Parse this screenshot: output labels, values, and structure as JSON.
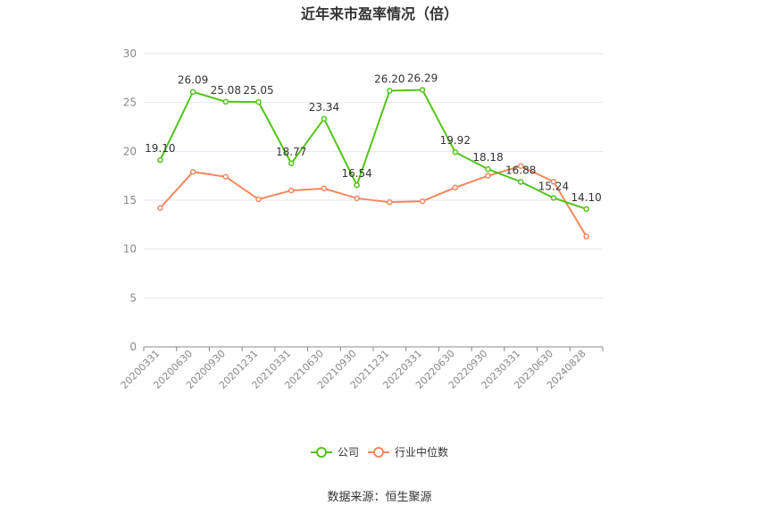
{
  "chart_data": {
    "type": "line",
    "title": "近年来市盈率情况（倍）",
    "categories": [
      "20200331",
      "20200630",
      "20200930",
      "20201231",
      "20210331",
      "20210630",
      "20210930",
      "20211231",
      "20220331",
      "20220630",
      "20220930",
      "20230331",
      "20230630",
      "20240828"
    ],
    "series": [
      {
        "name": "公司",
        "color": "#52c41a",
        "values": [
          19.1,
          26.09,
          25.08,
          25.05,
          18.77,
          23.34,
          16.54,
          26.2,
          26.29,
          19.92,
          18.18,
          16.88,
          15.24,
          14.1
        ],
        "labels": [
          "19.10",
          "26.09",
          "25.08",
          "25.05",
          "18.77",
          "23.34",
          "16.54",
          "26.20",
          "26.29",
          "19.92",
          "18.18",
          "16.88",
          "15.24",
          "14.10"
        ]
      },
      {
        "name": "行业中位数",
        "color": "#f4875c",
        "values": [
          14.2,
          17.9,
          17.4,
          15.1,
          16.0,
          16.2,
          15.2,
          14.8,
          14.9,
          16.3,
          17.5,
          18.5,
          16.9,
          11.3
        ]
      }
    ],
    "yticks": [
      0,
      5,
      10,
      15,
      20,
      25,
      30
    ],
    "ylim": [
      0,
      30
    ],
    "grid": true,
    "legend": "bottom"
  },
  "source": "数据来源：恒生聚源"
}
